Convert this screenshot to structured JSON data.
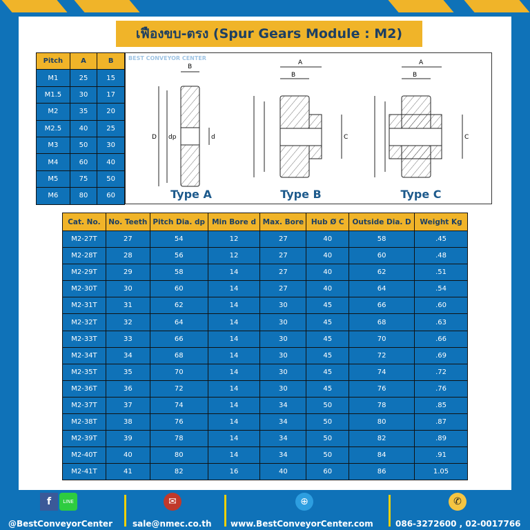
{
  "title": "เฟืองขบ-ตรง (Spur Gears Module : M2)",
  "pitch_table": {
    "headers": [
      "Pitch",
      "A",
      "B"
    ],
    "rows": [
      [
        "M1",
        "25",
        "15"
      ],
      [
        "M1.5",
        "30",
        "17"
      ],
      [
        "M2",
        "35",
        "20"
      ],
      [
        "M2.5",
        "40",
        "25"
      ],
      [
        "M3",
        "50",
        "30"
      ],
      [
        "M4",
        "60",
        "40"
      ],
      [
        "M5",
        "75",
        "50"
      ],
      [
        "M6",
        "80",
        "60"
      ]
    ]
  },
  "diagrams": {
    "types": [
      "Type A",
      "Type B",
      "Type C"
    ],
    "labels": {
      "A": "A",
      "B": "B",
      "C": "C",
      "D": "D",
      "dp": "dp",
      "d": "d"
    },
    "watermark": "BEST CONVEYOR CENTER"
  },
  "spec_table": {
    "headers": [
      "Cat. No.",
      "No. Teeth",
      "Pitch Dia. dp",
      "Min Bore d",
      "Max. Bore",
      "Hub Ø C",
      "Outside Dia. D",
      "Weight Kg"
    ],
    "rows": [
      [
        "M2-27T",
        "27",
        "54",
        "12",
        "27",
        "40",
        "58",
        ".45"
      ],
      [
        "M2-28T",
        "28",
        "56",
        "12",
        "27",
        "40",
        "60",
        ".48"
      ],
      [
        "M2-29T",
        "29",
        "58",
        "14",
        "27",
        "40",
        "62",
        ".51"
      ],
      [
        "M2-30T",
        "30",
        "60",
        "14",
        "27",
        "40",
        "64",
        ".54"
      ],
      [
        "M2-31T",
        "31",
        "62",
        "14",
        "30",
        "45",
        "66",
        ".60"
      ],
      [
        "M2-32T",
        "32",
        "64",
        "14",
        "30",
        "45",
        "68",
        ".63"
      ],
      [
        "M2-33T",
        "33",
        "66",
        "14",
        "30",
        "45",
        "70",
        ".66"
      ],
      [
        "M2-34T",
        "34",
        "68",
        "14",
        "30",
        "45",
        "72",
        ".69"
      ],
      [
        "M2-35T",
        "35",
        "70",
        "14",
        "30",
        "45",
        "74",
        ".72"
      ],
      [
        "M2-36T",
        "36",
        "72",
        "14",
        "30",
        "45",
        "76",
        ".76"
      ],
      [
        "M2-37T",
        "37",
        "74",
        "14",
        "34",
        "50",
        "78",
        ".85"
      ],
      [
        "M2-38T",
        "38",
        "76",
        "14",
        "34",
        "50",
        "80",
        ".87"
      ],
      [
        "M2-39T",
        "39",
        "78",
        "14",
        "34",
        "50",
        "82",
        ".89"
      ],
      [
        "M2-40T",
        "40",
        "80",
        "14",
        "34",
        "50",
        "84",
        ".91"
      ],
      [
        "M2-41T",
        "41",
        "82",
        "16",
        "40",
        "60",
        "86",
        "1.05"
      ]
    ]
  },
  "footer": {
    "social": "@BestConveyorCenter",
    "email": "sale@nmec.co.th",
    "website": "www.BestConveyorCenter.com",
    "phone": "086-3272600 , 02-0017766",
    "line_label": "LINE"
  },
  "colors": {
    "blue": "#0f72b8",
    "yellow": "#f0b429",
    "navy": "#1d3f62"
  }
}
